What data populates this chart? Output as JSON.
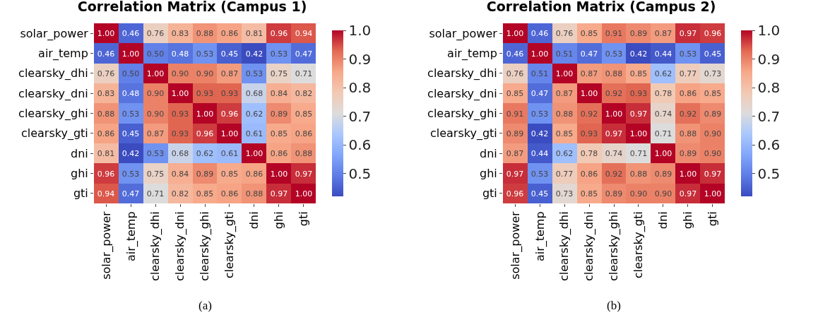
{
  "chart_data": [
    {
      "type": "heatmap",
      "title": "Correlation Matrix (Campus 1)",
      "categories": [
        "solar_power",
        "air_temp",
        "clearsky_dhi",
        "clearsky_dni",
        "clearsky_ghi",
        "clearsky_gti",
        "dni",
        "ghi",
        "gti"
      ],
      "y_categories": [
        "solar_power",
        "air_temp",
        "clearsky_dhi",
        "clearsky_dni",
        "clearsky_ghi",
        "clearsky_gti",
        "dni",
        "ghi",
        "gti"
      ],
      "cells": [
        [
          1.0,
          0.46,
          0.76,
          0.83,
          0.88,
          0.86,
          0.81,
          0.96,
          0.94
        ],
        [
          0.46,
          1.0,
          0.5,
          0.48,
          0.53,
          0.45,
          0.42,
          0.53,
          0.47
        ],
        [
          0.76,
          0.5,
          1.0,
          0.9,
          0.9,
          0.87,
          0.53,
          0.75,
          0.71
        ],
        [
          0.83,
          0.48,
          0.9,
          1.0,
          0.93,
          0.93,
          0.68,
          0.84,
          0.82
        ],
        [
          0.88,
          0.53,
          0.9,
          0.93,
          1.0,
          0.96,
          0.62,
          0.89,
          0.85
        ],
        [
          0.86,
          0.45,
          0.87,
          0.93,
          0.96,
          1.0,
          0.61,
          0.85,
          0.86
        ],
        [
          0.81,
          0.42,
          0.53,
          0.68,
          0.62,
          0.61,
          1.0,
          0.86,
          0.88
        ],
        [
          0.96,
          0.53,
          0.75,
          0.84,
          0.89,
          0.85,
          0.86,
          1.0,
          0.97
        ],
        [
          0.94,
          0.47,
          0.71,
          0.82,
          0.85,
          0.86,
          0.88,
          0.97,
          1.0
        ]
      ],
      "cell_labels": [
        [
          "1.00",
          "0.46",
          "0.76",
          "0.83",
          "0.88",
          "0.86",
          "0.81",
          "0.96",
          "0.94"
        ],
        [
          "0.46",
          "1.00",
          "0.50",
          "0.48",
          "0.53",
          "0.45",
          "0.42",
          "0.53",
          "0.47"
        ],
        [
          "0.76",
          "0.50",
          "1.00",
          "0.90",
          "0.90",
          "0.87",
          "0.53",
          "0.75",
          "0.71"
        ],
        [
          "0.83",
          "0.48",
          "0.90",
          "1.00",
          "0.93",
          "0.93",
          "0.68",
          "0.84",
          "0.82"
        ],
        [
          "0.88",
          "0.53",
          "0.90",
          "0.93",
          "1.00",
          "0.96",
          "0.62",
          "0.89",
          "0.85"
        ],
        [
          "0.86",
          "0.45",
          "0.87",
          "0.93",
          "0.96",
          "1.00",
          "0.61",
          "0.85",
          "0.86"
        ],
        [
          "0.81",
          "0.42",
          "0.53",
          "0.68",
          "0.62",
          "0.61",
          "1.00",
          "0.86",
          "0.88"
        ],
        [
          "0.96",
          "0.53",
          "0.75",
          "0.84",
          "0.89",
          "0.85",
          "0.86",
          "1.00",
          "0.97"
        ],
        [
          "0.94",
          "0.47",
          "0.71",
          "0.82",
          "0.85",
          "0.86",
          "0.88",
          "0.97",
          "1.00"
        ]
      ],
      "clim": [
        0.42,
        1.0
      ],
      "cticks": [
        0.5,
        0.6,
        0.7,
        0.8,
        0.9,
        {
          "value": 1,
          "label": "1.0"
        }
      ],
      "data_labels": true,
      "annotations": [
        "(a)"
      ]
    },
    {
      "type": "heatmap",
      "title": "Correlation Matrix (Campus 2)",
      "categories": [
        "solar_power",
        "air_temp",
        "clearsky_dhi",
        "clearsky_dni",
        "clearsky_ghi",
        "clearsky_gti",
        "dni",
        "ghi",
        "gti"
      ],
      "y_categories": [
        "solar_power",
        "air_temp",
        "clearsky_dhi",
        "clearsky_dni",
        "clearsky_ghi",
        "clearsky_gti",
        "dni",
        "ghi",
        "gti"
      ],
      "cells": [
        [
          1.0,
          0.46,
          0.76,
          0.85,
          0.91,
          0.89,
          0.87,
          0.97,
          0.96
        ],
        [
          0.46,
          1.0,
          0.51,
          0.47,
          0.53,
          0.42,
          0.44,
          0.53,
          0.45
        ],
        [
          0.76,
          0.51,
          1.0,
          0.87,
          0.88,
          0.85,
          0.62,
          0.77,
          0.73
        ],
        [
          0.85,
          0.47,
          0.87,
          1.0,
          0.92,
          0.93,
          0.78,
          0.86,
          0.85
        ],
        [
          0.91,
          0.53,
          0.88,
          0.92,
          1.0,
          0.97,
          0.74,
          0.92,
          0.89
        ],
        [
          0.89,
          0.42,
          0.85,
          0.93,
          0.97,
          1.0,
          0.71,
          0.88,
          0.9
        ],
        [
          0.87,
          0.44,
          0.62,
          0.78,
          0.74,
          0.71,
          1.0,
          0.89,
          0.9
        ],
        [
          0.97,
          0.53,
          0.77,
          0.86,
          0.92,
          0.88,
          0.89,
          1.0,
          0.97
        ],
        [
          0.96,
          0.45,
          0.73,
          0.85,
          0.89,
          0.9,
          0.9,
          0.97,
          1.0
        ]
      ],
      "cell_labels": [
        [
          "1.00",
          "0.46",
          "0.76",
          "0.85",
          "0.91",
          "0.89",
          "0.87",
          "0.97",
          "0.96"
        ],
        [
          "0.46",
          "1.00",
          "0.51",
          "0.47",
          "0.53",
          "0.42",
          "0.44",
          "0.53",
          "0.45"
        ],
        [
          "0.76",
          "0.51",
          "1.00",
          "0.87",
          "0.88",
          "0.85",
          "0.62",
          "0.77",
          "0.73"
        ],
        [
          "0.85",
          "0.47",
          "0.87",
          "1.00",
          "0.92",
          "0.93",
          "0.78",
          "0.86",
          "0.85"
        ],
        [
          "0.91",
          "0.53",
          "0.88",
          "0.92",
          "1.00",
          "0.97",
          "0.74",
          "0.92",
          "0.89"
        ],
        [
          "0.89",
          "0.42",
          "0.85",
          "0.93",
          "0.97",
          "1.00",
          "0.71",
          "0.88",
          "0.90"
        ],
        [
          "0.87",
          "0.44",
          "0.62",
          "0.78",
          "0.74",
          "0.71",
          "1.00",
          "0.89",
          "0.90"
        ],
        [
          "0.97",
          "0.53",
          "0.77",
          "0.86",
          "0.92",
          "0.88",
          "0.89",
          "1.00",
          "0.97"
        ],
        [
          "0.96",
          "0.45",
          "0.73",
          "0.85",
          "0.89",
          "0.90",
          "0.90",
          "0.97",
          "1.00"
        ]
      ],
      "clim": [
        0.42,
        1.0
      ],
      "cticks": [
        0.5,
        0.6,
        0.7,
        0.8,
        0.9,
        {
          "value": 1,
          "label": "1.0"
        }
      ],
      "data_labels": true,
      "annotations": [
        "(b)"
      ]
    }
  ]
}
